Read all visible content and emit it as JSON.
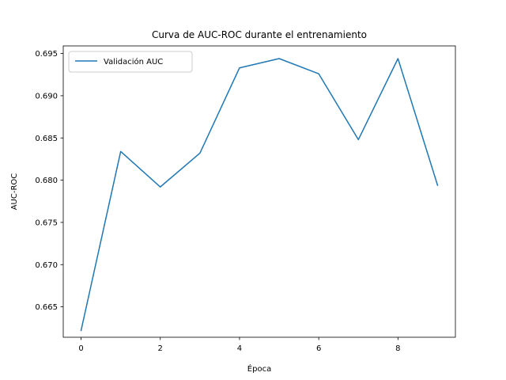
{
  "chart_data": {
    "type": "line",
    "title": "Curva de AUC-ROC durante el entrenamiento",
    "xlabel": "Época",
    "ylabel": "AUC-ROC",
    "xlim": [
      -0.45,
      9.45
    ],
    "ylim": [
      0.6614,
      0.6959
    ],
    "xticks": [
      0,
      2,
      4,
      6,
      8
    ],
    "yticks": [
      0.665,
      0.67,
      0.675,
      0.68,
      0.685,
      0.69,
      0.695
    ],
    "grid": false,
    "legend_position": "upper-left",
    "series": [
      {
        "name": "Validación AUC",
        "color": "#1f77b4",
        "x": [
          0,
          1,
          2,
          3,
          4,
          5,
          6,
          7,
          8,
          9
        ],
        "values": [
          0.6622,
          0.6834,
          0.6792,
          0.6832,
          0.6933,
          0.6944,
          0.6926,
          0.6848,
          0.6944,
          0.6794
        ]
      }
    ]
  }
}
